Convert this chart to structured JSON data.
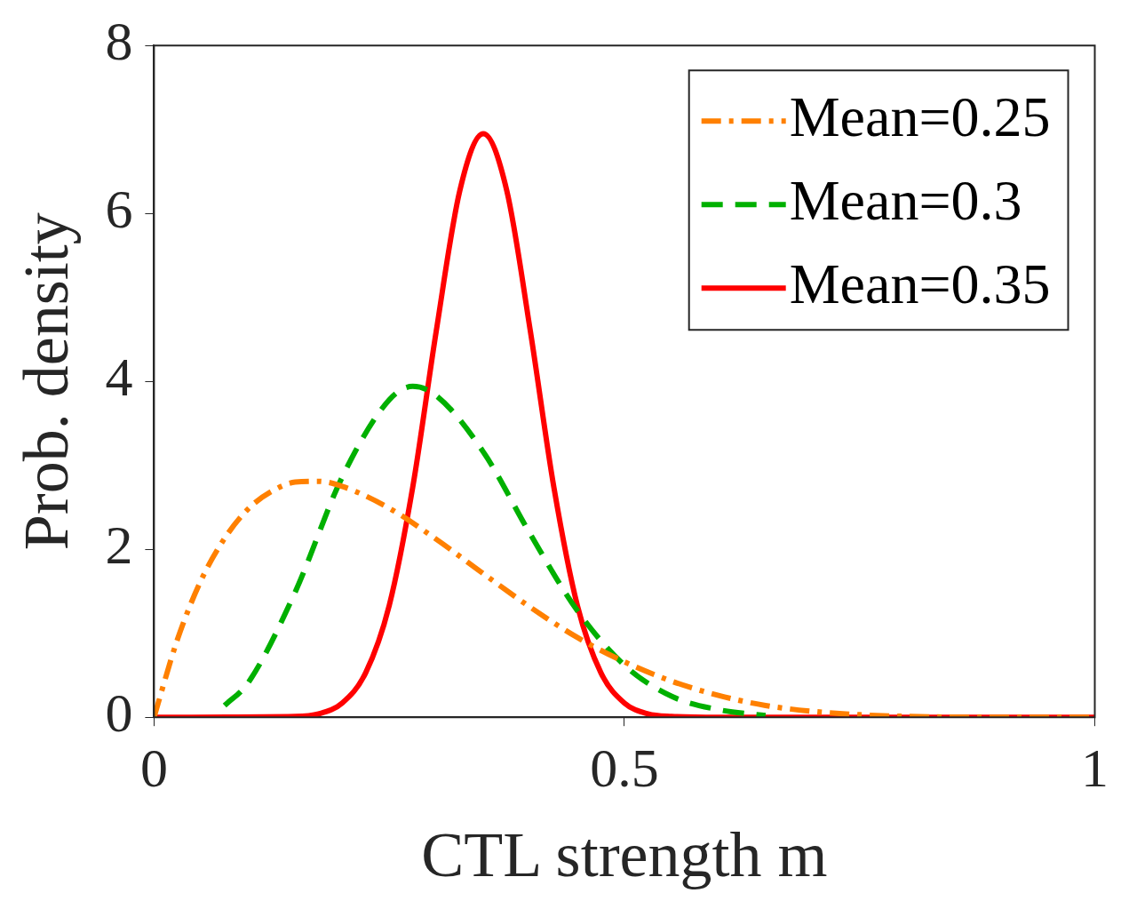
{
  "chart_data": {
    "type": "line",
    "xlabel": "CTL strength m",
    "ylabel": "Prob. density",
    "xlim": [
      0,
      1
    ],
    "xticks": [
      0,
      0.5,
      1
    ],
    "ylim": [
      0,
      8
    ],
    "yticks": [
      0,
      2,
      4,
      6,
      8
    ],
    "grid": false,
    "legend": "top right",
    "marker": "none",
    "series": [
      {
        "name": "Mean=0.25",
        "color": "#ff8000",
        "line_style": "dashdot",
        "x": [
          0,
          0.025,
          0.05,
          0.075,
          0.1,
          0.125,
          0.15,
          0.175,
          0.2,
          0.25,
          0.3,
          0.35,
          0.4,
          0.45,
          0.5,
          0.55,
          0.6,
          0.65,
          0.7,
          0.75,
          0.8,
          0.9,
          1
        ],
        "values": [
          0,
          0.93,
          1.63,
          2.13,
          2.48,
          2.69,
          2.8,
          2.81,
          2.75,
          2.49,
          2.12,
          1.71,
          1.31,
          0.95,
          0.66,
          0.43,
          0.26,
          0.14,
          0.07,
          0.03,
          0.01,
          0,
          0
        ]
      },
      {
        "name": "Mean=0.3",
        "color": "#00b000",
        "line_style": "dashed",
        "x": [
          0.075,
          0.1,
          0.15,
          0.2,
          0.25,
          0.275,
          0.3,
          0.35,
          0.4,
          0.45,
          0.5,
          0.55,
          0.6,
          0.65
        ],
        "values": [
          0.14,
          0.41,
          1.49,
          2.86,
          3.78,
          3.94,
          3.83,
          3.16,
          2.18,
          1.27,
          0.62,
          0.25,
          0.09,
          0.02
        ]
      },
      {
        "name": "Mean=0.35",
        "color": "#ff0000",
        "line_style": "solid",
        "x": [
          0,
          0.15,
          0.175,
          0.2,
          0.225,
          0.25,
          0.275,
          0.3,
          0.325,
          0.35,
          0.375,
          0.4,
          0.425,
          0.45,
          0.475,
          0.5,
          0.525,
          0.55,
          0.6,
          1
        ],
        "values": [
          0,
          0.01,
          0.04,
          0.17,
          0.53,
          1.33,
          2.74,
          4.6,
          6.27,
          6.95,
          6.27,
          4.6,
          2.74,
          1.33,
          0.53,
          0.17,
          0.04,
          0.01,
          0,
          0
        ]
      }
    ]
  }
}
